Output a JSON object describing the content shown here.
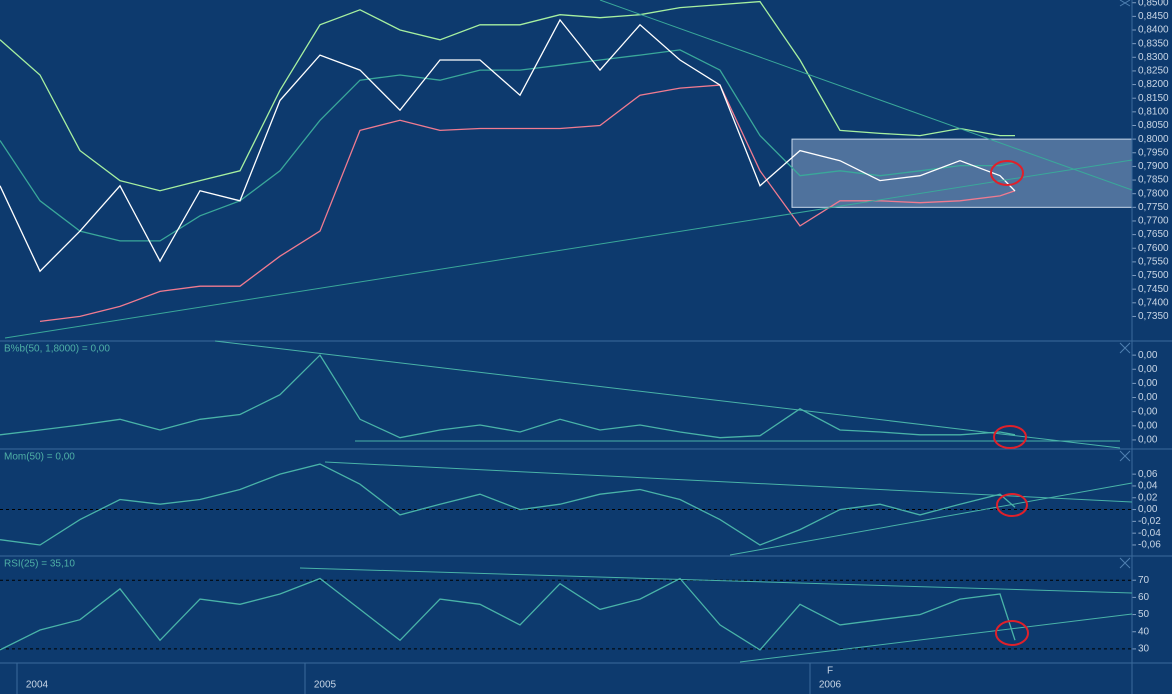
{
  "chart_data": [
    {
      "type": "line",
      "x": [
        0,
        1,
        2,
        3,
        4,
        5,
        6,
        7,
        8,
        9,
        10,
        11,
        12,
        13,
        14,
        15,
        16,
        17,
        18,
        19,
        20,
        21,
        22,
        23,
        24,
        25,
        25.375
      ],
      "xlim": [
        0,
        28.3
      ],
      "ylim": [
        0.726,
        0.851
      ],
      "yticks": [
        {
          "value": 0.85,
          "label": "0,8500"
        },
        {
          "value": 0.845,
          "label": "0,8450"
        },
        {
          "value": 0.84,
          "label": "0,8400"
        },
        {
          "value": 0.835,
          "label": "0,8350"
        },
        {
          "value": 0.83,
          "label": "0,8300"
        },
        {
          "value": 0.825,
          "label": "0,8250"
        },
        {
          "value": 0.82,
          "label": "0,8200"
        },
        {
          "value": 0.815,
          "label": "0,8150"
        },
        {
          "value": 0.81,
          "label": "0,8100"
        },
        {
          "value": 0.805,
          "label": "0,8050"
        },
        {
          "value": 0.8,
          "label": "0,8000"
        },
        {
          "value": 0.795,
          "label": "0,7950"
        },
        {
          "value": 0.79,
          "label": "0,7900"
        },
        {
          "value": 0.785,
          "label": "0,7850"
        },
        {
          "value": 0.78,
          "label": "0,7800"
        },
        {
          "value": 0.775,
          "label": "0,7750"
        },
        {
          "value": 0.77,
          "label": "0,7700"
        },
        {
          "value": 0.765,
          "label": "0,7650"
        },
        {
          "value": 0.76,
          "label": "0,7600"
        },
        {
          "value": 0.755,
          "label": "0,7550"
        },
        {
          "value": 0.75,
          "label": "0,7500"
        },
        {
          "value": 0.745,
          "label": "0,7450"
        },
        {
          "value": 0.74,
          "label": "0,7400"
        },
        {
          "value": 0.735,
          "label": "0,7350"
        }
      ],
      "range_box": {
        "x": [
          19.8,
          28.3
        ],
        "y": [
          0.775,
          0.8
        ],
        "color": "#9fb8d6"
      },
      "series": [
        {
          "color": "#3aa89a",
          "values": [
            0.7995,
            0.7774,
            0.7663,
            0.7627,
            0.7627,
            0.7719,
            0.7774,
            0.7884,
            0.8069,
            0.8216,
            0.8235,
            0.8216,
            0.8253,
            0.8253,
            0.8271,
            0.829,
            0.8308,
            0.8327,
            0.8253,
            0.8013,
            0.7866,
            0.7884,
            0.7866,
            0.7884,
            0.7903,
            0.7903,
            0.7914
          ]
        },
        {
          "color": "#a6f0a0",
          "values": [
            0.8364,
            0.8235,
            0.7958,
            0.7848,
            0.7811,
            0.7848,
            0.7884,
            0.8179,
            0.8419,
            0.8474,
            0.84,
            0.8364,
            0.8419,
            0.8419,
            0.8456,
            0.8445,
            0.8456,
            0.8482,
            0.8493,
            0.8504,
            0.829,
            0.8032,
            0.8021,
            0.8013,
            0.8039,
            0.8013,
            0.8013
          ]
        },
        {
          "color": "#f07b90",
          "values": [
            null,
            0.7332,
            0.735,
            0.7387,
            0.7442,
            0.7461,
            0.7461,
            0.7571,
            0.7663,
            0.8032,
            0.8069,
            0.8032,
            0.8039,
            0.8039,
            0.8039,
            0.805,
            0.8161,
            0.8187,
            0.8198,
            0.7884,
            0.7682,
            0.7774,
            0.7774,
            0.7767,
            0.7774,
            0.7792,
            0.7811
          ]
        },
        {
          "color": "#ffffff",
          "values": [
            0.7829,
            0.7516,
            0.7663,
            0.7829,
            0.7553,
            0.7811,
            0.7774,
            0.8142,
            0.8308,
            0.8253,
            0.8106,
            0.829,
            0.829,
            0.8161,
            0.8437,
            0.8253,
            0.8419,
            0.829,
            0.8198,
            0.7829,
            0.7958,
            0.7921,
            0.7848,
            0.7866,
            0.7921,
            0.7866,
            0.781
          ]
        }
      ]
    },
    {
      "type": "line",
      "title": "B%b(50, 1,8000) = 0,00",
      "x": [
        0,
        1,
        2,
        3,
        4,
        5,
        6,
        7,
        8,
        9,
        10,
        11,
        12,
        13,
        14,
        15,
        16,
        17,
        18,
        19,
        20,
        21,
        22,
        23,
        24,
        25,
        25.375
      ],
      "xlim": [
        0,
        28.3
      ],
      "ylim": [
        -0.00025,
        0.0035
      ],
      "yticks": [
        {
          "value": 0.003,
          "label": "0,00"
        },
        {
          "value": 0.0025,
          "label": "0,00"
        },
        {
          "value": 0.002,
          "label": "0,00"
        },
        {
          "value": 0.0015,
          "label": "0,00"
        },
        {
          "value": 0.001,
          "label": "0,00"
        },
        {
          "value": 0.0005,
          "label": "0,00"
        },
        {
          "value": 0,
          "label": "0,00"
        }
      ],
      "series": [
        {
          "color": "#49b3a8",
          "values": [
            0.00018,
            0.00035,
            0.00053,
            0.00073,
            0.00035,
            0.00073,
            0.0009,
            0.0016,
            0.003,
            0.00073,
            8e-05,
            0.00035,
            0.00053,
            0.00028,
            0.00073,
            0.00035,
            0.00053,
            0.00028,
            8e-05,
            0.00015,
            0.0011,
            0.00035,
            0.00028,
            0.00018,
            0.00018,
            0.00028,
            0.00018
          ]
        }
      ]
    },
    {
      "type": "line",
      "title": "Mom(50) = 0,00",
      "x": [
        0,
        1,
        2,
        3,
        4,
        5,
        6,
        7,
        8,
        9,
        10,
        11,
        12,
        13,
        14,
        15,
        16,
        17,
        18,
        19,
        20,
        21,
        22,
        23,
        24,
        25,
        25.375
      ],
      "xlim": [
        0,
        28.3
      ],
      "ylim": [
        -0.077,
        0.1026
      ],
      "yticks": [
        {
          "value": 0.06,
          "label": "0,06"
        },
        {
          "value": 0.04,
          "label": "0,04"
        },
        {
          "value": 0.02,
          "label": "0,02"
        },
        {
          "value": 0,
          "label": "0,00"
        },
        {
          "value": -0.02,
          "label": "-0,02"
        },
        {
          "value": -0.04,
          "label": "-0,04"
        },
        {
          "value": -0.06,
          "label": "-0,06"
        }
      ],
      "hlines": [
        0
      ],
      "series": [
        {
          "color": "#49b3a8",
          "values": [
            -0.051,
            -0.06,
            -0.017,
            0.017,
            0.009,
            0.017,
            0.034,
            0.06,
            0.077,
            0.043,
            -0.009,
            0.009,
            0.026,
            0,
            0.009,
            0.026,
            0.034,
            0.017,
            -0.017,
            -0.06,
            -0.034,
            0,
            0.009,
            -0.009,
            0.009,
            0.026,
            0.004
          ]
        }
      ]
    },
    {
      "type": "line",
      "title": "RSI(25) = 35,10",
      "x": [
        0,
        1,
        2,
        3,
        4,
        5,
        6,
        7,
        8,
        9,
        10,
        11,
        12,
        13,
        14,
        15,
        16,
        17,
        18,
        19,
        20,
        21,
        22,
        23,
        24,
        25,
        25.375
      ],
      "xlim": [
        0,
        28.3
      ],
      "ylim": [
        21.8,
        84.1
      ],
      "yticks": [
        70,
        60,
        50,
        40,
        30
      ],
      "hlines": [
        70,
        30
      ],
      "xticks": [
        {
          "value": 0.925,
          "label": "2004"
        },
        {
          "value": 8.125,
          "label": "2005"
        },
        {
          "value": 20.75,
          "label": "2006"
        }
      ],
      "x_marker": {
        "value": 20.75,
        "label": "F"
      },
      "series": [
        {
          "color": "#49b3a8",
          "values": [
            29.4,
            41,
            47,
            65,
            35,
            59,
            56,
            62,
            71,
            53,
            35,
            59,
            56,
            44,
            68,
            53,
            59,
            71,
            44,
            29.4,
            56,
            44,
            47,
            50,
            59,
            62,
            35.1
          ]
        }
      ]
    }
  ]
}
